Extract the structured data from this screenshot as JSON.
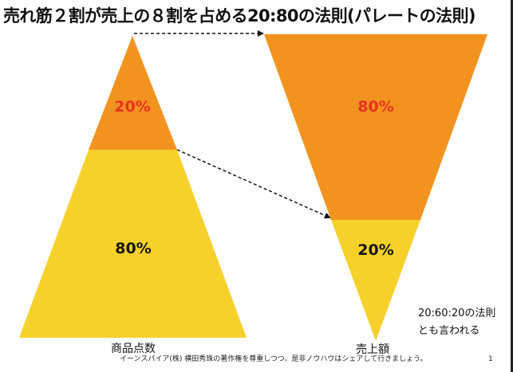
{
  "title": "売れ筋２割が売上の８割を占める20:80の法則(パレートの法則)",
  "left_pyramid": {
    "top_percent": "20%",
    "bottom_percent": "80%",
    "label": "商品点数"
  },
  "right_pyramid": {
    "top_percent": "80%",
    "bottom_percent": "20%",
    "label": "売上額"
  },
  "note": {
    "line1": "20:60:20の法則",
    "line2": "とも言われる"
  },
  "footer": "イーンスパイア(株) 横田秀珠の著作権を尊重しつつ、是非ノウハウはシェアして行きましょう。",
  "page_number": "1",
  "colors": {
    "orange": "#f3931f",
    "yellow": "#f6d12c",
    "red_text": "#e8321e"
  }
}
